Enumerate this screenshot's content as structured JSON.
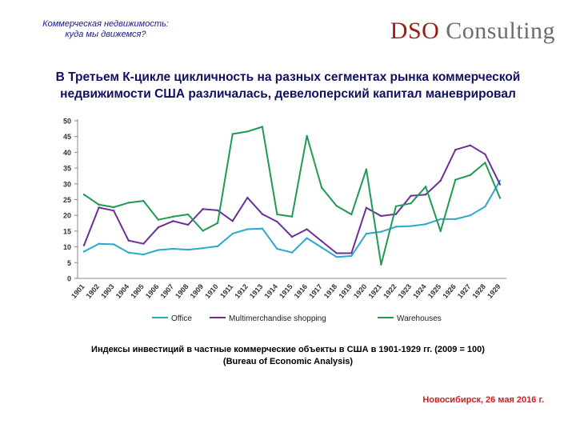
{
  "header": {
    "title_line1": "Коммерческая недвижимость:",
    "title_line2": "куда мы движемся?",
    "brand_part1": "DSO",
    "brand_part2": "Consulting"
  },
  "headline": {
    "line1": "В Третьем К-цикле цикличность на разных сегментах рынка коммерческой",
    "line2": "недвижимости США различалась, девелоперский капитал маневрировал"
  },
  "chart_data": {
    "type": "line",
    "x": [
      "1901",
      "1902",
      "1903",
      "1904",
      "1905",
      "1906",
      "1907",
      "1908",
      "1909",
      "1910",
      "1911",
      "1912",
      "1913",
      "1914",
      "1915",
      "1916",
      "1917",
      "1918",
      "1919",
      "1920",
      "1921",
      "1922",
      "1923",
      "1924",
      "1925",
      "1926",
      "1927",
      "1928",
      "1929"
    ],
    "ylim": [
      0,
      50
    ],
    "yticks": [
      0,
      5,
      10,
      15,
      20,
      25,
      30,
      35,
      40,
      45,
      50
    ],
    "grid": false,
    "legend_position": "bottom",
    "series": [
      {
        "name": "Office",
        "color": "#2aa9cc",
        "values": [
          8.5,
          11,
          10.8,
          8.2,
          7.6,
          9,
          9.4,
          9.1,
          9.6,
          10.2,
          14.2,
          15.6,
          15.8,
          9.4,
          8.2,
          12.8,
          9.8,
          6.8,
          7.1,
          14.2,
          14.8,
          16.4,
          16.6,
          17.2,
          18.8,
          18.8,
          20,
          22.8,
          31
        ]
      },
      {
        "name": "Multimerchandise shopping",
        "color": "#6a2f9a",
        "values": [
          10.5,
          22.5,
          21.5,
          12,
          11,
          16.2,
          18.2,
          17,
          22,
          21.6,
          18.2,
          25.6,
          20.4,
          18,
          13.2,
          15.6,
          11.8,
          8,
          8,
          22.4,
          19.8,
          20.4,
          26.2,
          26.6,
          31,
          40.8,
          42.2,
          39.4,
          29.8
        ]
      },
      {
        "name": "Warehouses",
        "color": "#1e9a52",
        "values": [
          26.6,
          23.4,
          22.6,
          24,
          24.6,
          18.6,
          19.6,
          20.3,
          15.1,
          17.6,
          45.8,
          46.6,
          48.1,
          20.3,
          19.6,
          45.2,
          28.8,
          23,
          20.3,
          34.6,
          4.4,
          22.9,
          23.8,
          29.1,
          15,
          31.3,
          32.8,
          36.7,
          25.5
        ]
      }
    ]
  },
  "caption": {
    "line1": "Индексы инвестиций в частные коммерческие объекты в США в 1901-1929 гг. (2009 = 100)",
    "line2": "(Bureau of Economic Analysis)"
  },
  "footer": {
    "place_date": "Новосибирск, 26 мая 2016 г."
  }
}
